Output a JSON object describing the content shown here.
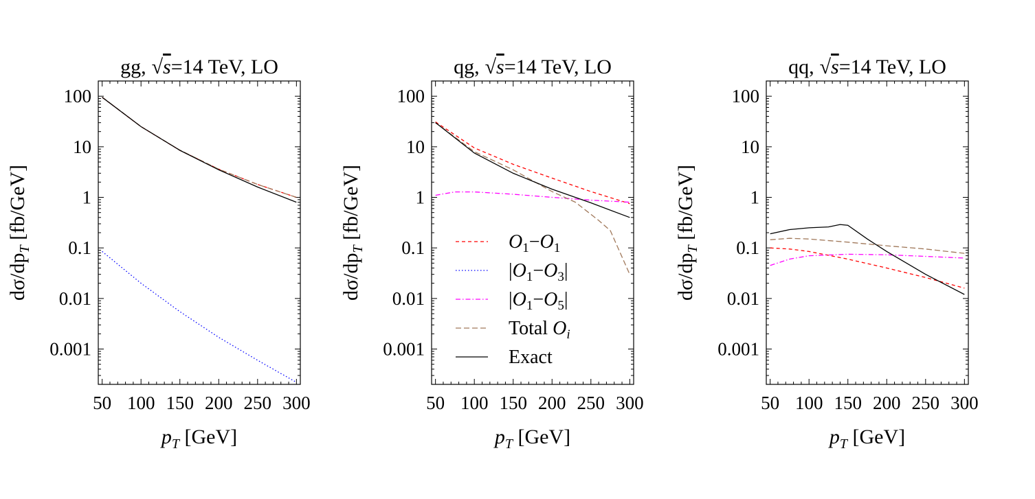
{
  "chart_data": [
    {
      "type": "line",
      "title": {
        "process": "gg,",
        "sqrt_symbol": "√",
        "sqrt_var": "s",
        "rest": "=14 TeV, LO"
      },
      "xlabel": {
        "var": "p",
        "sub": "T",
        "unit": " [GeV]"
      },
      "ylabel": {
        "prefix": "dσ/dp",
        "sub": "T",
        "unit": " [fb/GeV]"
      },
      "yscale": "log",
      "xlim": [
        45,
        305
      ],
      "ylim": [
        0.0002,
        200
      ],
      "xticks": [
        50,
        100,
        150,
        200,
        250,
        300
      ],
      "yticks": [
        {
          "v": 100,
          "label": "100"
        },
        {
          "v": 10,
          "label": "10"
        },
        {
          "v": 1,
          "label": "1"
        },
        {
          "v": 0.1,
          "label": "0.1"
        },
        {
          "v": 0.01,
          "label": "0.01"
        },
        {
          "v": 0.001,
          "label": "0.001"
        }
      ],
      "series": [
        {
          "key": "o1o1",
          "x": [
            50,
            100,
            150,
            200,
            250,
            300
          ],
          "y": [
            95,
            25,
            8.5,
            3.6,
            1.8,
            1.0
          ]
        },
        {
          "key": "o1o3",
          "x": [
            50,
            100,
            150,
            200,
            250,
            300
          ],
          "y": [
            0.085,
            0.02,
            0.0055,
            0.0017,
            0.0006,
            0.00022
          ]
        },
        {
          "key": "total",
          "x": [
            50,
            100,
            150,
            200,
            250,
            300
          ],
          "y": [
            96,
            25,
            8.6,
            3.6,
            1.8,
            1.0
          ]
        },
        {
          "key": "exact",
          "x": [
            50,
            100,
            150,
            200,
            250,
            300
          ],
          "y": [
            95,
            25,
            8.5,
            3.5,
            1.6,
            0.8
          ]
        }
      ]
    },
    {
      "type": "line",
      "title": {
        "process": "qg,",
        "sqrt_symbol": "√",
        "sqrt_var": "s",
        "rest": "=14 TeV, LO"
      },
      "xlabel": {
        "var": "p",
        "sub": "T",
        "unit": " [GeV]"
      },
      "ylabel": {
        "prefix": "dσ/dp",
        "sub": "T",
        "unit": " [fb/GeV]"
      },
      "yscale": "log",
      "xlim": [
        45,
        305
      ],
      "ylim": [
        0.0002,
        200
      ],
      "xticks": [
        50,
        100,
        150,
        200,
        250,
        300
      ],
      "yticks": [
        {
          "v": 100,
          "label": "100"
        },
        {
          "v": 10,
          "label": "10"
        },
        {
          "v": 1,
          "label": "1"
        },
        {
          "v": 0.1,
          "label": "0.1"
        },
        {
          "v": 0.01,
          "label": "0.01"
        },
        {
          "v": 0.001,
          "label": "0.001"
        }
      ],
      "series": [
        {
          "key": "o1o1",
          "x": [
            50,
            100,
            150,
            200,
            250,
            300
          ],
          "y": [
            31,
            9.5,
            4.5,
            2.4,
            1.3,
            0.75
          ]
        },
        {
          "key": "o1o5",
          "x": [
            50,
            75,
            100,
            150,
            200,
            250,
            300
          ],
          "y": [
            1.1,
            1.28,
            1.28,
            1.15,
            1.0,
            0.88,
            0.8
          ]
        },
        {
          "key": "total",
          "x": [
            50,
            100,
            150,
            200,
            230,
            260,
            275,
            300
          ],
          "y": [
            30,
            8,
            3.5,
            1.3,
            0.8,
            0.35,
            0.22,
            0.03
          ]
        },
        {
          "key": "exact",
          "x": [
            50,
            100,
            150,
            200,
            250,
            300
          ],
          "y": [
            30,
            7.5,
            3.0,
            1.45,
            0.78,
            0.4
          ]
        }
      ],
      "legend": {
        "placement": "lower-left",
        "entries": [
          {
            "key": "o1o1",
            "a": "O",
            "as": "1",
            "b": "O",
            "bs": "1",
            "abs": false
          },
          {
            "key": "o1o3",
            "a": "O",
            "as": "1",
            "b": "O",
            "bs": "3",
            "abs": true
          },
          {
            "key": "o1o5",
            "a": "O",
            "as": "1",
            "b": "O",
            "bs": "5",
            "abs": true
          },
          {
            "key": "total",
            "text": "Total ",
            "var": "O",
            "sub": "i"
          },
          {
            "key": "exact",
            "text": "Exact"
          }
        ]
      }
    },
    {
      "type": "line",
      "title": {
        "process": "qq,",
        "sqrt_symbol": "√",
        "sqrt_var": "s",
        "rest": "=14 TeV, LO"
      },
      "xlabel": {
        "var": "p",
        "sub": "T",
        "unit": " [GeV]"
      },
      "ylabel": {
        "prefix": "dσ/dp",
        "sub": "T",
        "unit": " [fb/GeV]"
      },
      "yscale": "log",
      "xlim": [
        45,
        305
      ],
      "ylim": [
        0.0002,
        200
      ],
      "xticks": [
        50,
        100,
        150,
        200,
        250,
        300
      ],
      "yticks": [
        {
          "v": 100,
          "label": "100"
        },
        {
          "v": 10,
          "label": "10"
        },
        {
          "v": 1,
          "label": "1"
        },
        {
          "v": 0.1,
          "label": "0.1"
        },
        {
          "v": 0.01,
          "label": "0.01"
        },
        {
          "v": 0.001,
          "label": "0.001"
        }
      ],
      "series": [
        {
          "key": "o1o1",
          "x": [
            50,
            75,
            100,
            150,
            200,
            250,
            300
          ],
          "y": [
            0.1,
            0.095,
            0.085,
            0.06,
            0.04,
            0.026,
            0.016
          ]
        },
        {
          "key": "o1o5",
          "x": [
            50,
            75,
            100,
            150,
            200,
            250,
            300
          ],
          "y": [
            0.045,
            0.06,
            0.07,
            0.075,
            0.073,
            0.068,
            0.063
          ]
        },
        {
          "key": "total",
          "x": [
            50,
            75,
            100,
            150,
            200,
            250,
            300
          ],
          "y": [
            0.145,
            0.155,
            0.15,
            0.13,
            0.11,
            0.095,
            0.078
          ]
        },
        {
          "key": "exact",
          "x": [
            50,
            75,
            100,
            125,
            140,
            150,
            175,
            200,
            250,
            300
          ],
          "y": [
            0.19,
            0.23,
            0.25,
            0.26,
            0.29,
            0.28,
            0.15,
            0.085,
            0.03,
            0.012
          ]
        }
      ]
    }
  ],
  "styles": {
    "o1o1": {
      "color": "#ff0000",
      "dash": "5 4"
    },
    "o1o3": {
      "color": "#0000ff",
      "dash": "1.5 3"
    },
    "o1o5": {
      "color": "#ff00ff",
      "dash": "7 3 1.5 3"
    },
    "total": {
      "color": "#a0785a",
      "dash": "8 4"
    },
    "exact": {
      "color": "#000000",
      "dash": ""
    }
  }
}
